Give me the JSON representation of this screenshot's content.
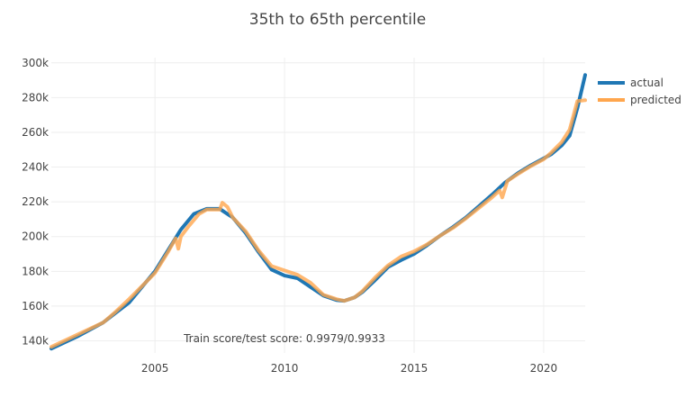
{
  "chart_data": {
    "type": "line",
    "title": "35th to 65th percentile",
    "xlabel": "",
    "ylabel": "",
    "xlim": [
      2001.0,
      2021.6
    ],
    "ylim": [
      133000,
      303000
    ],
    "x_ticks": [
      2005,
      2010,
      2015,
      2020
    ],
    "x_tick_labels": [
      "2005",
      "2010",
      "2015",
      "2020"
    ],
    "y_ticks": [
      140000,
      160000,
      180000,
      200000,
      220000,
      240000,
      260000,
      280000,
      300000
    ],
    "y_tick_labels": [
      "140k",
      "160k",
      "180k",
      "200k",
      "220k",
      "240k",
      "260k",
      "280k",
      "300k"
    ],
    "grid": true,
    "legend_position": "top-right",
    "annotation": "Train score/test score: 0.9979/0.9933",
    "series": [
      {
        "name": "actual",
        "color": "#1f77b4",
        "points": [
          [
            2001.0,
            135500
          ],
          [
            2002.0,
            142500
          ],
          [
            2003.0,
            150500
          ],
          [
            2004.0,
            162000
          ],
          [
            2005.0,
            180000
          ],
          [
            2005.5,
            192000
          ],
          [
            2006.0,
            204000
          ],
          [
            2006.5,
            213000
          ],
          [
            2007.0,
            216000
          ],
          [
            2007.5,
            216000
          ],
          [
            2008.0,
            211000
          ],
          [
            2008.5,
            202000
          ],
          [
            2009.0,
            191000
          ],
          [
            2009.5,
            181000
          ],
          [
            2010.0,
            177500
          ],
          [
            2010.5,
            176000
          ],
          [
            2011.0,
            171000
          ],
          [
            2011.5,
            166000
          ],
          [
            2012.0,
            163500
          ],
          [
            2012.3,
            163000
          ],
          [
            2012.7,
            165000
          ],
          [
            2013.0,
            168000
          ],
          [
            2013.5,
            175000
          ],
          [
            2014.0,
            182500
          ],
          [
            2014.5,
            186500
          ],
          [
            2015.0,
            190000
          ],
          [
            2015.5,
            195000
          ],
          [
            2016.0,
            200500
          ],
          [
            2016.5,
            205500
          ],
          [
            2017.0,
            211000
          ],
          [
            2017.5,
            217500
          ],
          [
            2018.0,
            224000
          ],
          [
            2018.5,
            231000
          ],
          [
            2019.0,
            236500
          ],
          [
            2019.5,
            241000
          ],
          [
            2020.0,
            245000
          ],
          [
            2020.3,
            247500
          ],
          [
            2020.7,
            252500
          ],
          [
            2021.0,
            258000
          ],
          [
            2021.3,
            274000
          ],
          [
            2021.6,
            293000
          ]
        ]
      },
      {
        "name": "predicted",
        "color": "#ffa64d",
        "points": [
          [
            2001.0,
            136500
          ],
          [
            2002.0,
            143500
          ],
          [
            2003.0,
            150500
          ],
          [
            2003.5,
            157000
          ],
          [
            2004.0,
            164000
          ],
          [
            2004.5,
            171500
          ],
          [
            2005.0,
            179000
          ],
          [
            2005.5,
            191000
          ],
          [
            2005.8,
            199000
          ],
          [
            2005.9,
            193000
          ],
          [
            2006.0,
            200000
          ],
          [
            2006.3,
            206000
          ],
          [
            2006.7,
            213000
          ],
          [
            2007.0,
            215500
          ],
          [
            2007.5,
            215500
          ],
          [
            2007.6,
            219500
          ],
          [
            2007.8,
            217000
          ],
          [
            2008.0,
            211000
          ],
          [
            2008.5,
            203000
          ],
          [
            2009.0,
            192000
          ],
          [
            2009.5,
            183000
          ],
          [
            2010.0,
            180500
          ],
          [
            2010.5,
            178000
          ],
          [
            2011.0,
            173500
          ],
          [
            2011.5,
            166500
          ],
          [
            2012.0,
            164000
          ],
          [
            2012.3,
            163000
          ],
          [
            2012.7,
            165000
          ],
          [
            2013.0,
            168500
          ],
          [
            2013.5,
            176500
          ],
          [
            2014.0,
            183500
          ],
          [
            2014.5,
            188500
          ],
          [
            2015.0,
            191500
          ],
          [
            2015.5,
            195500
          ],
          [
            2016.0,
            200500
          ],
          [
            2016.5,
            205000
          ],
          [
            2017.0,
            210500
          ],
          [
            2017.5,
            216500
          ],
          [
            2018.0,
            222500
          ],
          [
            2018.3,
            226500
          ],
          [
            2018.4,
            222500
          ],
          [
            2018.6,
            232000
          ],
          [
            2019.0,
            236000
          ],
          [
            2019.5,
            240500
          ],
          [
            2020.0,
            244500
          ],
          [
            2020.3,
            248500
          ],
          [
            2020.7,
            254500
          ],
          [
            2021.0,
            261500
          ],
          [
            2021.3,
            278000
          ],
          [
            2021.6,
            278500
          ]
        ]
      }
    ]
  }
}
